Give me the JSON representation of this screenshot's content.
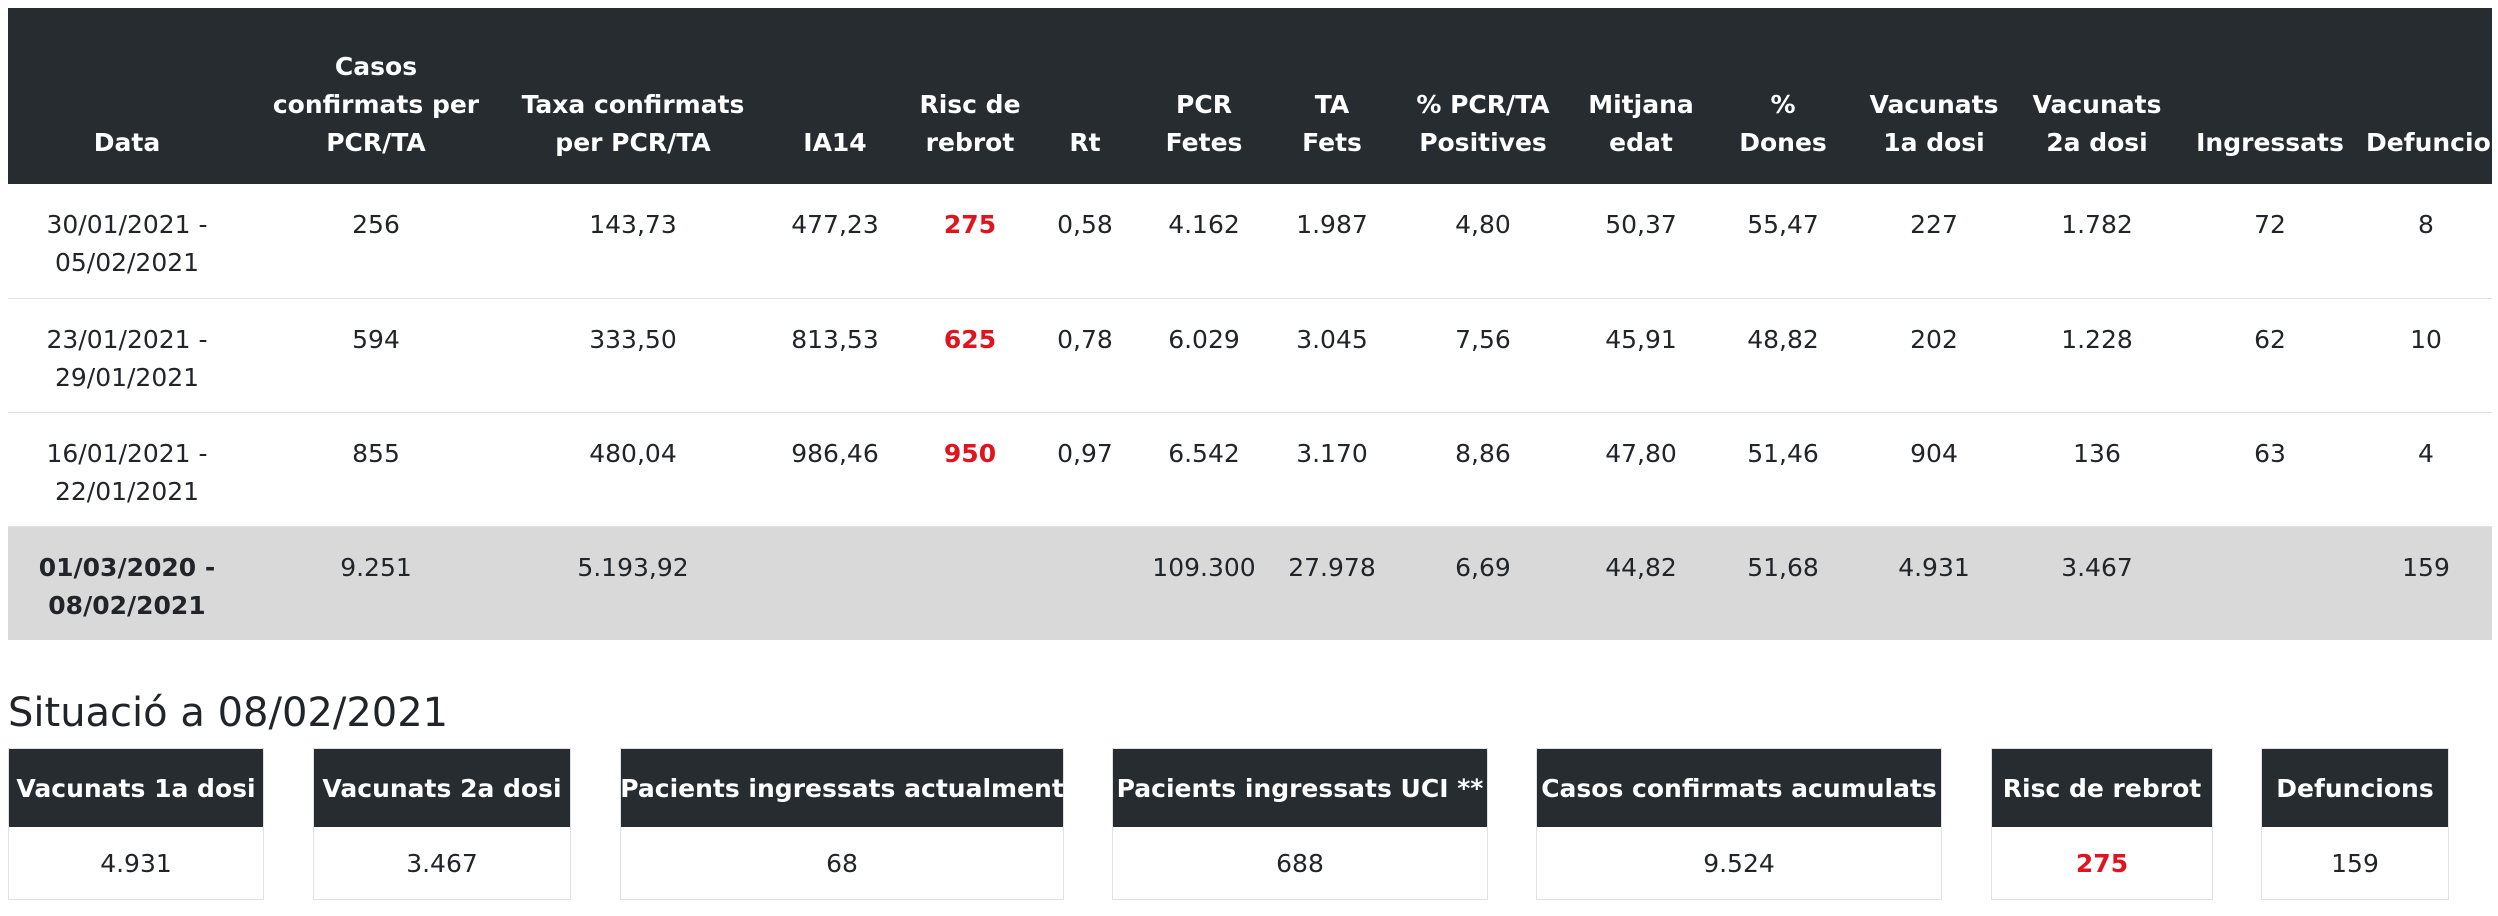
{
  "table": {
    "headers": [
      [
        "Data"
      ],
      [
        "Casos",
        "confirmats per",
        "PCR/TA"
      ],
      [
        "Taxa confirmats",
        "per PCR/TA"
      ],
      [
        "IA14"
      ],
      [
        "Risc de",
        "rebrot"
      ],
      [
        "Rt"
      ],
      [
        "PCR",
        "Fetes"
      ],
      [
        "TA",
        "Fets"
      ],
      [
        "% PCR/TA",
        "Positives"
      ],
      [
        "Mitjana",
        "edat"
      ],
      [
        "%",
        "Dones"
      ],
      [
        "Vacunats",
        "1a dosi"
      ],
      [
        "Vacunats",
        "2a dosi"
      ],
      [
        "Ingressats"
      ],
      [
        "Defuncions"
      ]
    ],
    "rows": [
      {
        "date": [
          "30/01/2021 -",
          "05/02/2021"
        ],
        "cells": [
          "256",
          "143,73",
          "477,23",
          "275",
          "0,58",
          "4.162",
          "1.987",
          "4,80",
          "50,37",
          "55,47",
          "227",
          "1.782",
          "72",
          "8"
        ]
      },
      {
        "date": [
          "23/01/2021 -",
          "29/01/2021"
        ],
        "cells": [
          "594",
          "333,50",
          "813,53",
          "625",
          "0,78",
          "6.029",
          "3.045",
          "7,56",
          "45,91",
          "48,82",
          "202",
          "1.228",
          "62",
          "10"
        ]
      },
      {
        "date": [
          "16/01/2021 -",
          "22/01/2021"
        ],
        "cells": [
          "855",
          "480,04",
          "986,46",
          "950",
          "0,97",
          "6.542",
          "3.170",
          "8,86",
          "47,80",
          "51,46",
          "904",
          "136",
          "63",
          "4"
        ]
      }
    ],
    "total": {
      "date": [
        "01/03/2020 -",
        "08/02/2021"
      ],
      "cells": [
        "9.251",
        "5.193,92",
        "",
        "",
        "",
        "109.300",
        "27.978",
        "6,69",
        "44,82",
        "51,68",
        "4.931",
        "3.467",
        "",
        "159"
      ]
    }
  },
  "situation": {
    "title": "Situació a 08/02/2021",
    "cards": [
      {
        "label": "Vacunats 1a dosi",
        "value": "4.931"
      },
      {
        "label": "Vacunats 2a dosi",
        "value": "3.467"
      },
      {
        "label": "Pacients ingressats actualment",
        "value": "68"
      },
      {
        "label": "Pacients ingressats UCI **",
        "value": "688"
      },
      {
        "label": "Casos confirmats acumulats",
        "value": "9.524"
      },
      {
        "label": "Risc de rebrot",
        "value": "275"
      },
      {
        "label": "Defuncions",
        "value": "159"
      }
    ]
  },
  "colors": {
    "header_bg": "#272c31",
    "risk_text": "#e0141e",
    "total_row_bg": "#d9d9d9"
  }
}
